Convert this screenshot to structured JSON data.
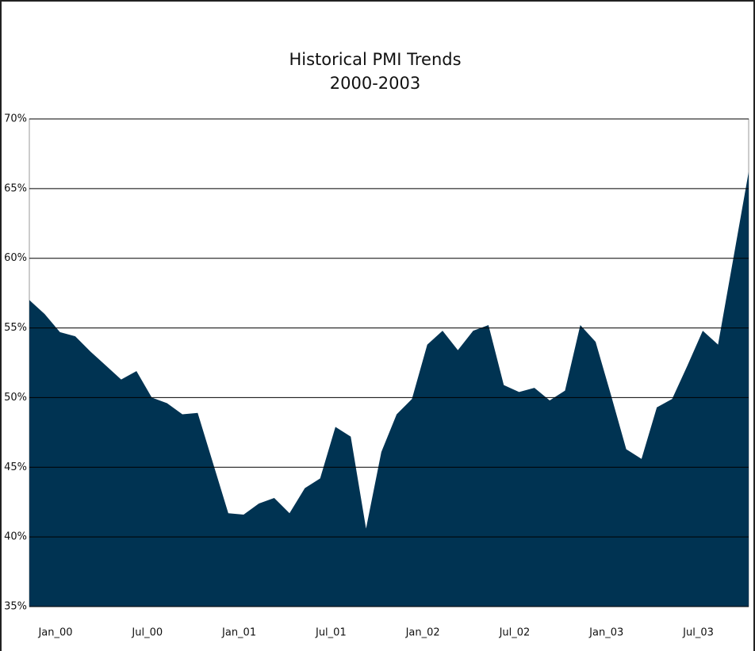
{
  "chart_data": {
    "type": "area",
    "title": "Historical PMI Trends",
    "subtitle": "2000-2003",
    "categories": [
      "Jan_00",
      null,
      null,
      null,
      null,
      null,
      "Jul_00",
      null,
      null,
      null,
      null,
      null,
      "Jan_01",
      null,
      null,
      null,
      null,
      null,
      "Jul_01",
      null,
      null,
      null,
      null,
      null,
      "Jan_02",
      null,
      null,
      null,
      null,
      null,
      "Jul_02",
      null,
      null,
      null,
      null,
      null,
      "Jan_03",
      null,
      null,
      null,
      null,
      null,
      "Jul_03",
      null,
      null,
      null,
      null,
      null
    ],
    "values": [
      57.0,
      56.0,
      54.7,
      54.4,
      53.3,
      52.3,
      51.3,
      51.9,
      50.0,
      49.6,
      48.8,
      48.9,
      45.3,
      41.7,
      41.6,
      42.4,
      42.8,
      41.7,
      43.5,
      44.2,
      47.9,
      47.2,
      40.6,
      46.1,
      48.8,
      49.9,
      53.8,
      54.8,
      53.4,
      54.8,
      55.2,
      50.9,
      50.4,
      50.7,
      49.8,
      50.5,
      55.2,
      54.0,
      50.2,
      46.3,
      45.6,
      49.3,
      49.9,
      52.3,
      54.8,
      53.8,
      60.0,
      66.2
    ],
    "color": "#003352",
    "ylim": [
      35,
      70
    ],
    "yticks": [
      {
        "value": 35,
        "label": "35%"
      },
      {
        "value": 40,
        "label": "40%"
      },
      {
        "value": 45,
        "label": "45%"
      },
      {
        "value": 50,
        "label": "50%"
      },
      {
        "value": 55,
        "label": "55%"
      },
      {
        "value": 60,
        "label": "60%"
      },
      {
        "value": 65,
        "label": "65%"
      },
      {
        "value": 70,
        "label": "70%"
      }
    ],
    "grid": true
  }
}
